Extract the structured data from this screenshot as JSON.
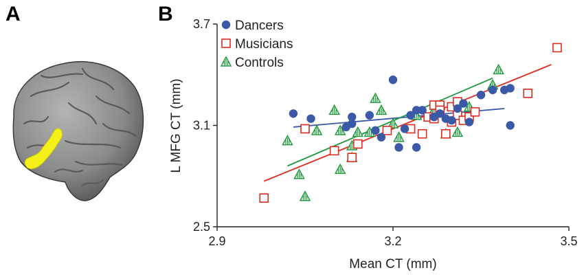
{
  "panels": {
    "a": "A",
    "b": "B"
  },
  "colors": {
    "dancers": "#3a5aa8",
    "musicians": "#e02a20",
    "controls": "#1e9a3c",
    "brain": "#8e8e8e",
    "highlight": "#f5f01a"
  },
  "chart_data": {
    "type": "scatter",
    "xlabel": "Mean CT (mm)",
    "ylabel": "L MFG CT (mm)",
    "xlim": [
      2.9,
      3.5
    ],
    "ylim": [
      2.5,
      3.7
    ],
    "xticks": [
      "2.9",
      "3.2",
      "3.5"
    ],
    "yticks": [
      "2.5",
      "3.1",
      "3.7"
    ],
    "legend_position": "top-left",
    "series": [
      {
        "name": "Dancers",
        "marker": "circle",
        "x": [
          3.03,
          3.06,
          3.12,
          3.13,
          3.13,
          3.16,
          3.17,
          3.18,
          3.2,
          3.21,
          3.22,
          3.23,
          3.24,
          3.24,
          3.25,
          3.27,
          3.28,
          3.29,
          3.3,
          3.31,
          3.32,
          3.33,
          3.35,
          3.37,
          3.39,
          3.4,
          3.4
        ],
        "y": [
          3.17,
          3.14,
          3.09,
          3.11,
          3.15,
          3.16,
          3.07,
          3.03,
          3.37,
          2.97,
          3.08,
          3.16,
          3.19,
          2.97,
          3.19,
          3.15,
          3.17,
          3.14,
          3.13,
          3.2,
          3.23,
          3.12,
          3.28,
          3.31,
          3.31,
          3.32,
          3.1
        ],
        "trend": [
          [
            3.03,
            3.09
          ],
          [
            3.39,
            3.2
          ]
        ]
      },
      {
        "name": "Musicians",
        "marker": "square",
        "x": [
          2.98,
          3.05,
          3.1,
          3.13,
          3.14,
          3.19,
          3.23,
          3.25,
          3.26,
          3.27,
          3.27,
          3.28,
          3.28,
          3.29,
          3.3,
          3.3,
          3.31,
          3.31,
          3.32,
          3.33,
          3.34,
          3.43,
          3.48
        ],
        "y": [
          2.67,
          3.08,
          2.95,
          2.91,
          2.99,
          3.07,
          3.08,
          3.05,
          3.15,
          3.22,
          3.14,
          3.22,
          3.19,
          3.05,
          3.21,
          3.12,
          3.24,
          3.16,
          3.13,
          3.15,
          3.18,
          3.29,
          3.56
        ],
        "trend": [
          [
            2.98,
            2.77
          ],
          [
            3.47,
            3.46
          ]
        ]
      },
      {
        "name": "Controls",
        "marker": "triangle",
        "x": [
          3.02,
          3.04,
          3.05,
          3.07,
          3.1,
          3.11,
          3.11,
          3.13,
          3.13,
          3.14,
          3.16,
          3.17,
          3.18,
          3.2,
          3.21,
          3.24,
          3.27,
          3.28,
          3.29,
          3.31,
          3.33,
          3.37,
          3.38
        ],
        "y": [
          3.01,
          2.81,
          2.68,
          3.07,
          3.19,
          2.84,
          3.07,
          2.91,
          2.98,
          3.06,
          3.06,
          3.26,
          3.19,
          3.11,
          3.03,
          3.16,
          3.19,
          3.22,
          3.05,
          3.06,
          3.21,
          3.34,
          3.43
        ],
        "trend": [
          [
            3.02,
            2.86
          ],
          [
            3.37,
            3.38
          ]
        ]
      }
    ]
  }
}
